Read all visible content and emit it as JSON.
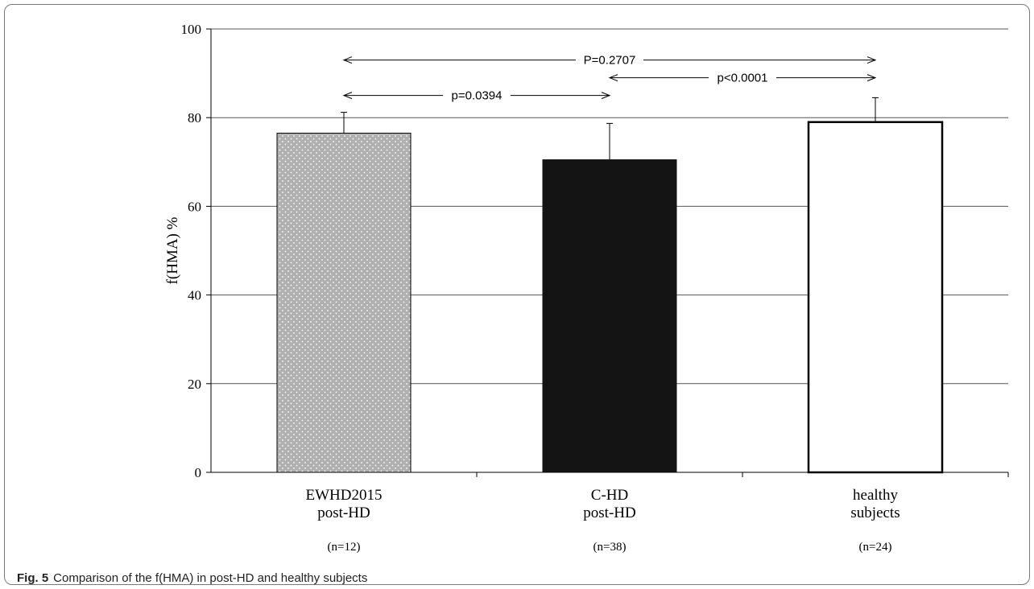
{
  "caption": {
    "label": "Fig. 5",
    "text": "Comparison of the f(HMA) in post-HD and healthy subjects"
  },
  "chart_data": {
    "type": "bar",
    "ylabel": "f(HMA) %",
    "ylim": [
      0,
      100
    ],
    "yticks": [
      0,
      20,
      40,
      60,
      80,
      100
    ],
    "grid": true,
    "categories": [
      {
        "line1": "EWHD2015",
        "line2": "post-HD",
        "n": "(n=12)"
      },
      {
        "line1": "C-HD",
        "line2": "post-HD",
        "n": "(n=38)"
      },
      {
        "line1": "healthy",
        "line2": "subjects",
        "n": "(n=24)"
      }
    ],
    "values": [
      76.5,
      70.5,
      79
    ],
    "error_plus": [
      4.7,
      8.2,
      5.5
    ],
    "bar_styles": [
      "dotted-gray",
      "black",
      "white-outline"
    ],
    "comparisons": [
      {
        "from": 0,
        "to": 2,
        "label": "P=0.2707",
        "level": 93
      },
      {
        "from": 0,
        "to": 1,
        "label": "p=0.0394",
        "level": 85
      },
      {
        "from": 1,
        "to": 2,
        "label": "p<0.0001",
        "level": 89
      }
    ]
  },
  "colors": {
    "axis": "#000000",
    "grid": "#555555",
    "bar_gray": "#b0b0b0",
    "bar_black": "#141414",
    "bar_white": "#ffffff"
  }
}
